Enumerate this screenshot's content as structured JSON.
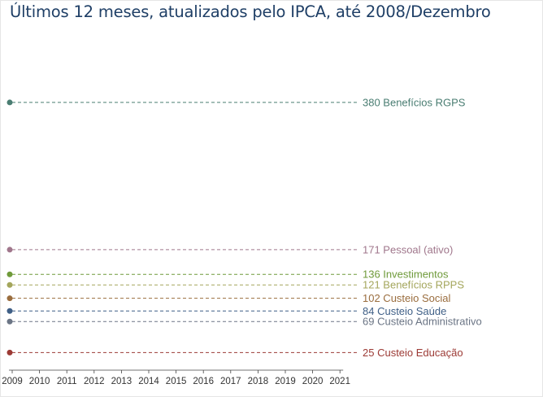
{
  "chart_data": {
    "type": "line",
    "title": "Últimos 12 meses, atualizados pelo IPCA, até 2008/Dezembro",
    "xlabel": "",
    "ylabel": "",
    "x": [
      "2009",
      "2010",
      "2011",
      "2012",
      "2013",
      "2014",
      "2015",
      "2016",
      "2017",
      "2018",
      "2019",
      "2020",
      "2021"
    ],
    "ylim": [
      0,
      500
    ],
    "grid": false,
    "series": [
      {
        "name": "Benefícios RGPS",
        "value": 380,
        "label": "380 Benefícios RGPS",
        "color": "#4a7d72"
      },
      {
        "name": "Pessoal (ativo)",
        "value": 171,
        "label": "171 Pessoal (ativo)",
        "color": "#a0778c"
      },
      {
        "name": "Investimentos",
        "value": 136,
        "label": "136 Investimentos",
        "color": "#6f9a3a"
      },
      {
        "name": "Benefícios RPPS",
        "value": 121,
        "label": "121 Benefícios RPPS",
        "color": "#a4a65c"
      },
      {
        "name": "Custeio Social",
        "value": 102,
        "label": "102 Custeio Social",
        "color": "#9a6d3e"
      },
      {
        "name": "Custeio Saúde",
        "value": 84,
        "label": "84 Custeio Saúde",
        "color": "#3f5f86"
      },
      {
        "name": "Custeio Administrativo",
        "value": 69,
        "label": "69 Custeio Administrativo",
        "color": "#6b7585"
      },
      {
        "name": "Custeio Educação",
        "value": 25,
        "label": "25 Custeio Educação",
        "color": "#9c3a35"
      }
    ]
  }
}
